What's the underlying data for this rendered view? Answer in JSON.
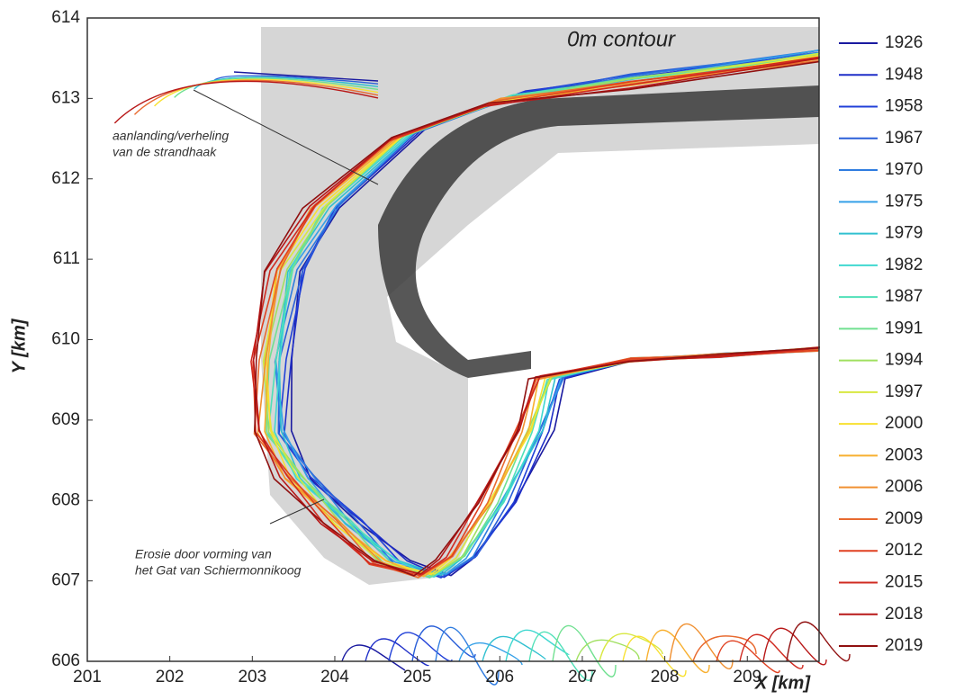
{
  "chart_data": {
    "type": "contour",
    "title": "0m contour",
    "x_label": "X [km]",
    "y_label": "Y [km]",
    "annotations": [
      "aanlanding/verheling",
      "van de strandhaak",
      "Erosie door vorming van",
      "het Gat van Schiermonnikoog"
    ],
    "xlim": [
      201,
      209.87
    ],
    "ylim": [
      606,
      614
    ],
    "xticks": [
      201,
      202,
      203,
      204,
      205,
      206,
      207,
      208,
      209
    ],
    "yticks": [
      606,
      607,
      608,
      609,
      610,
      611,
      612,
      613,
      614
    ],
    "series": [
      {
        "name": "1926",
        "color": "#1a1aa0"
      },
      {
        "name": "1948",
        "color": "#1f2fc8"
      },
      {
        "name": "1958",
        "color": "#2040d8"
      },
      {
        "name": "1967",
        "color": "#2a5fd8"
      },
      {
        "name": "1970",
        "color": "#2f7ce0"
      },
      {
        "name": "1975",
        "color": "#35a0e8"
      },
      {
        "name": "1979",
        "color": "#30c0d0"
      },
      {
        "name": "1982",
        "color": "#40d8d0"
      },
      {
        "name": "1987",
        "color": "#50e0b8"
      },
      {
        "name": "1991",
        "color": "#70e090"
      },
      {
        "name": "1994",
        "color": "#a0e060"
      },
      {
        "name": "1997",
        "color": "#d8e840"
      },
      {
        "name": "2000",
        "color": "#f8e030"
      },
      {
        "name": "2003",
        "color": "#f8b030"
      },
      {
        "name": "2006",
        "color": "#f09030"
      },
      {
        "name": "2009",
        "color": "#e86a30"
      },
      {
        "name": "2012",
        "color": "#e04020"
      },
      {
        "name": "2015",
        "color": "#d02a20"
      },
      {
        "name": "2018",
        "color": "#b81818"
      },
      {
        "name": "2019",
        "color": "#901010"
      }
    ]
  }
}
